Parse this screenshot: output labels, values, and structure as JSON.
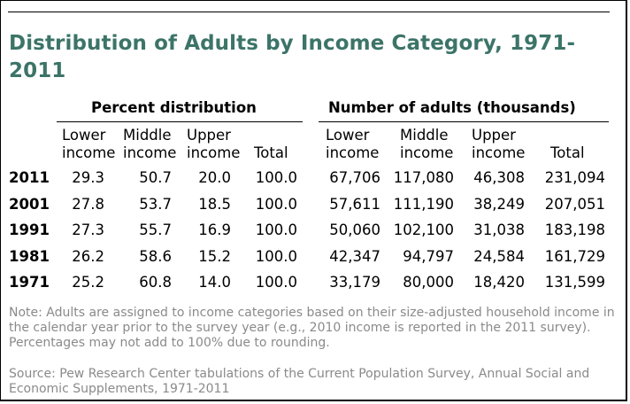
{
  "title": "Distribution of Adults by Income Category, 1971-2011",
  "groups": {
    "percent": "Percent distribution",
    "number": "Number of adults (thousands)"
  },
  "columns": {
    "lower": [
      "Lower",
      "income"
    ],
    "middle": [
      "Middle",
      "income"
    ],
    "upper": [
      "Upper",
      "income"
    ],
    "total": "Total"
  },
  "chart_data": {
    "type": "table",
    "title": "Distribution of Adults by Income Category, 1971-2011",
    "column_groups": [
      "Percent distribution",
      "Number of adults (thousands)"
    ],
    "columns": [
      "Lower income",
      "Middle income",
      "Upper income",
      "Total"
    ],
    "rows": [
      {
        "year": "2011",
        "pct": [
          "29.3",
          "50.7",
          "20.0",
          "100.0"
        ],
        "num": [
          "67,706",
          "117,080",
          "46,308",
          "231,094"
        ]
      },
      {
        "year": "2001",
        "pct": [
          "27.8",
          "53.7",
          "18.5",
          "100.0"
        ],
        "num": [
          "57,611",
          "111,190",
          "38,249",
          "207,051"
        ]
      },
      {
        "year": "1991",
        "pct": [
          "27.3",
          "55.7",
          "16.9",
          "100.0"
        ],
        "num": [
          "50,060",
          "102,100",
          "31,038",
          "183,198"
        ]
      },
      {
        "year": "1981",
        "pct": [
          "26.2",
          "58.6",
          "15.2",
          "100.0"
        ],
        "num": [
          "42,347",
          "94,797",
          "24,584",
          "161,729"
        ]
      },
      {
        "year": "1971",
        "pct": [
          "25.2",
          "60.8",
          "14.0",
          "100.0"
        ],
        "num": [
          "33,179",
          "80,000",
          "18,420",
          "131,599"
        ]
      }
    ]
  },
  "note": "Note: Adults are assigned to income categories based on their size-adjusted household income in the calendar year prior to the survey year (e.g., 2010 income is reported in the 2011 survey). Percentages may not add to 100% due to rounding.",
  "source": "Source: Pew Research Center tabulations of the Current Population Survey, Annual Social and Economic Supplements, 1971-2011",
  "colors": {
    "title": "#3c7468",
    "note": "#8a8a8a",
    "text": "#000000"
  }
}
